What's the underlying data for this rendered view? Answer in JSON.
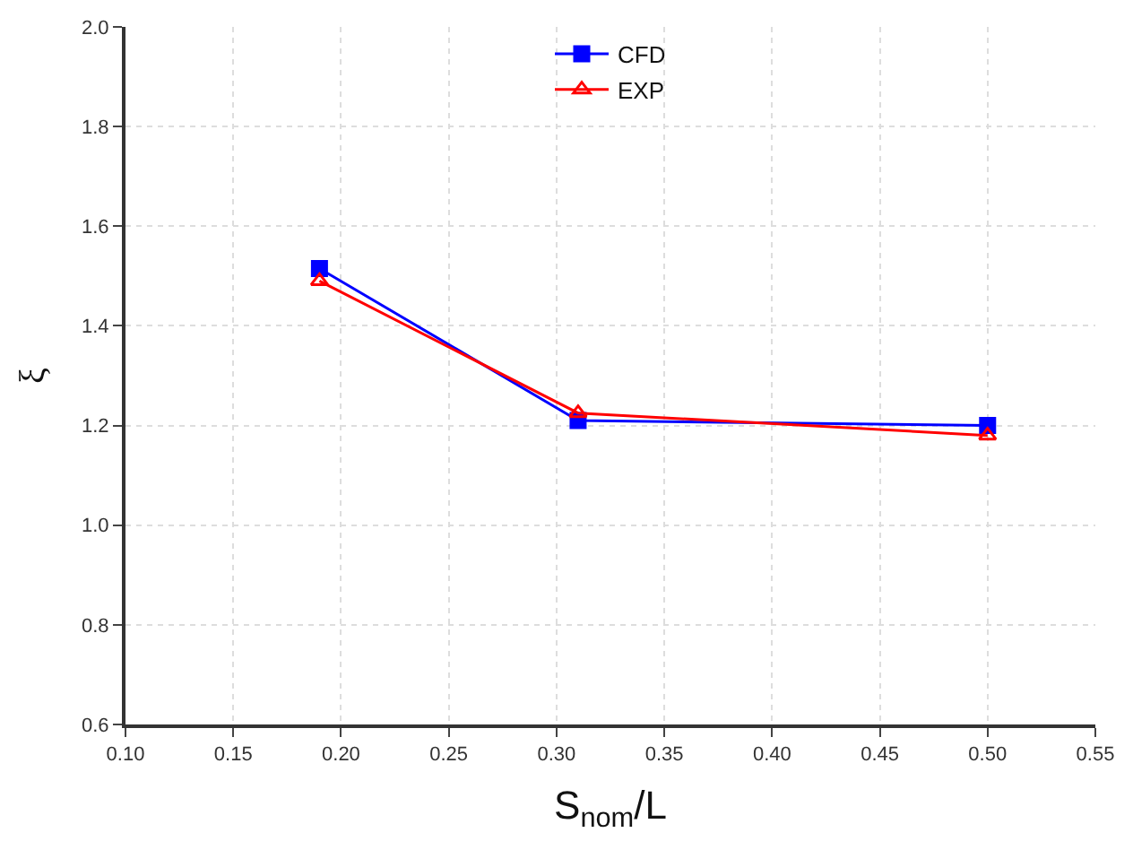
{
  "chart_data": {
    "type": "line",
    "xlabel": "S$_{nom}$/L",
    "ylabel": "ξ",
    "x": [
      0.19,
      0.31,
      0.5
    ],
    "series": [
      {
        "name": "CFD",
        "color": "#0000ff",
        "marker": "square",
        "values": [
          1.515,
          1.21,
          1.2
        ]
      },
      {
        "name": "EXP",
        "color": "#ff0000",
        "marker": "triangle",
        "values": [
          1.49,
          1.225,
          1.18
        ]
      }
    ],
    "xlim": [
      0.1,
      0.55
    ],
    "xticks": [
      {
        "value": 0.1,
        "label": "0.10"
      },
      {
        "value": 0.15,
        "label": "0.15"
      },
      {
        "value": 0.2,
        "label": "0.20"
      },
      {
        "value": 0.25,
        "label": "0.25"
      },
      {
        "value": 0.3,
        "label": "0.30"
      },
      {
        "value": 0.35,
        "label": "0.35"
      },
      {
        "value": 0.4,
        "label": "0.40"
      },
      {
        "value": 0.45,
        "label": "0.45"
      },
      {
        "value": 0.5,
        "label": "0.50"
      },
      {
        "value": 0.55,
        "label": "0.55"
      }
    ],
    "ylim": [
      0.6,
      2.0
    ],
    "yticks": [
      0.6,
      0.8,
      {
        "value": 1.0,
        "label": "1.0"
      },
      1.2,
      1.4,
      1.6,
      1.8,
      {
        "value": 2.0,
        "label": "2.0"
      }
    ],
    "grid": true,
    "legend": "top",
    "line_style": "solid"
  }
}
